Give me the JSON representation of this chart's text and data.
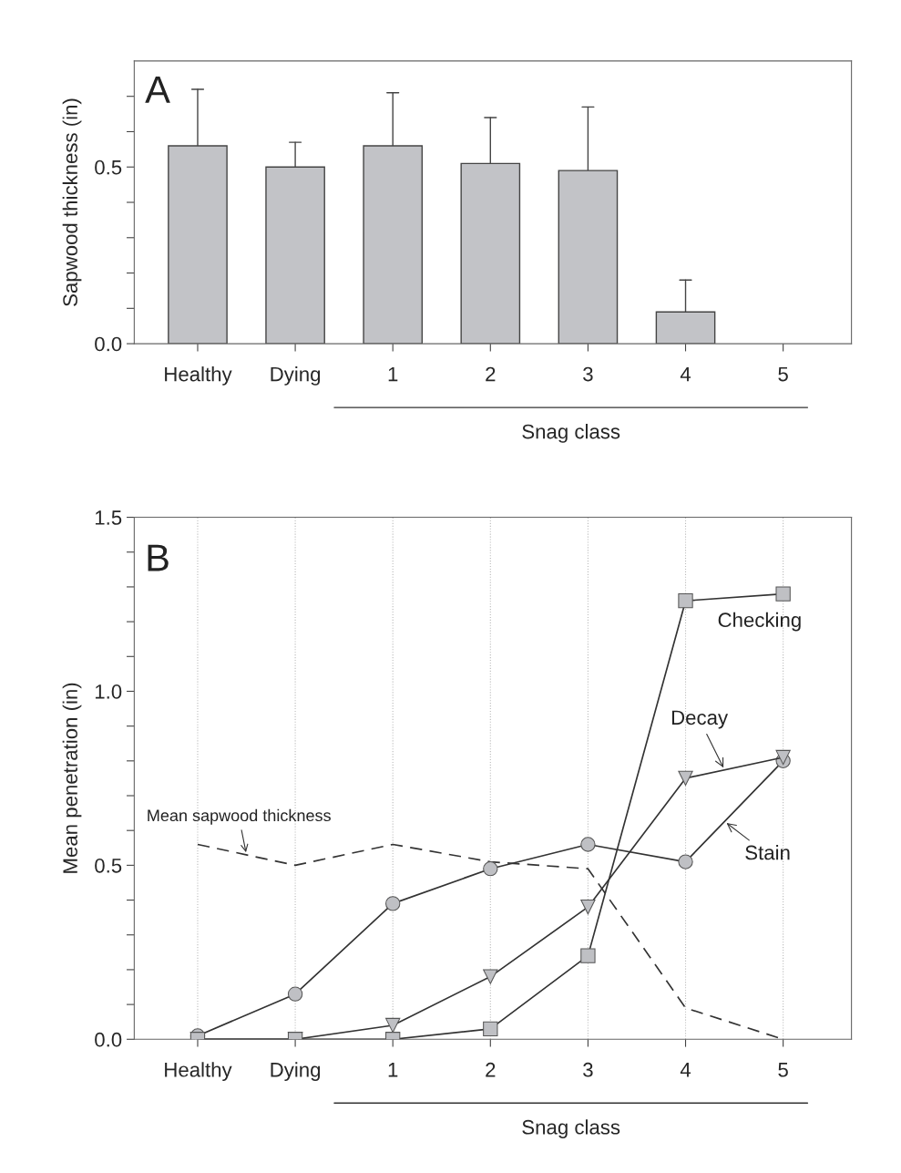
{
  "chart_data": [
    {
      "type": "bar",
      "ylabel": "Sapwood thickness (in)",
      "xlabel": "Snag class",
      "annotations": [
        "A"
      ],
      "categories": [
        "Healthy",
        "Dying",
        "1",
        "2",
        "3",
        "4",
        "5"
      ],
      "values": [
        0.56,
        0.5,
        0.56,
        0.51,
        0.49,
        0.09,
        null
      ],
      "errors": [
        [
          0.56,
          0.72
        ],
        [
          0.5,
          0.57
        ],
        [
          0.56,
          0.71
        ],
        [
          0.51,
          0.64
        ],
        [
          0.49,
          0.67
        ],
        [
          0.09,
          0.18
        ],
        null
      ],
      "color": "#c2c3c7",
      "ylim": [
        0,
        0.8
      ],
      "yticks": [
        {
          "value": 0,
          "label": "0.0"
        },
        {
          "value": 0.1,
          "label": null
        },
        {
          "value": 0.2,
          "label": null
        },
        {
          "value": 0.3,
          "label": null
        },
        {
          "value": 0.4,
          "label": null
        },
        {
          "value": 0.5,
          "label": "0.5"
        },
        {
          "value": 0.6,
          "label": null
        },
        {
          "value": 0.7,
          "label": null
        }
      ],
      "grid": false
    },
    {
      "type": "line",
      "ylabel": "Mean penetration (in)",
      "xlabel": "Snag class",
      "annotations": [
        "B"
      ],
      "categories": [
        "Healthy",
        "Dying",
        "1",
        "2",
        "3",
        "4",
        "5"
      ],
      "series": [
        {
          "name": "Mean sapwood thickness",
          "color": "#333333",
          "line_style": "dashed",
          "marker": "none",
          "values": [
            0.56,
            0.5,
            0.56,
            0.51,
            0.49,
            0.09,
            0.0
          ]
        },
        {
          "name": "Stain",
          "color": "#333333",
          "line_style": "solid",
          "marker": "circle",
          "values": [
            0.01,
            0.13,
            0.39,
            0.49,
            0.56,
            0.51,
            0.8
          ]
        },
        {
          "name": "Decay",
          "color": "#333333",
          "line_style": "solid",
          "marker": "triangle",
          "values": [
            0,
            0,
            0.04,
            0.18,
            0.38,
            0.75,
            0.81
          ]
        },
        {
          "name": "Checking",
          "color": "#333333",
          "line_style": "solid",
          "marker": "square",
          "values": [
            0,
            0,
            0,
            0.03,
            0.24,
            1.26,
            1.28
          ]
        }
      ],
      "ylim": [
        0,
        1.5
      ],
      "yticks": [
        {
          "value": 0,
          "label": "0.0"
        },
        {
          "value": 0.1,
          "label": null
        },
        {
          "value": 0.2,
          "label": null
        },
        {
          "value": 0.3,
          "label": null
        },
        {
          "value": 0.4,
          "label": null
        },
        {
          "value": 0.5,
          "label": "0.5"
        },
        {
          "value": 0.6,
          "label": null
        },
        {
          "value": 0.7,
          "label": null
        },
        {
          "value": 0.8,
          "label": null
        },
        {
          "value": 0.9,
          "label": null
        },
        {
          "value": 1.0,
          "label": "1.0"
        },
        {
          "value": 1.1,
          "label": null
        },
        {
          "value": 1.2,
          "label": null
        },
        {
          "value": 1.3,
          "label": null
        },
        {
          "value": 1.4,
          "label": null
        },
        {
          "value": 1.5,
          "label": "1.5"
        }
      ],
      "grid": "x"
    }
  ]
}
